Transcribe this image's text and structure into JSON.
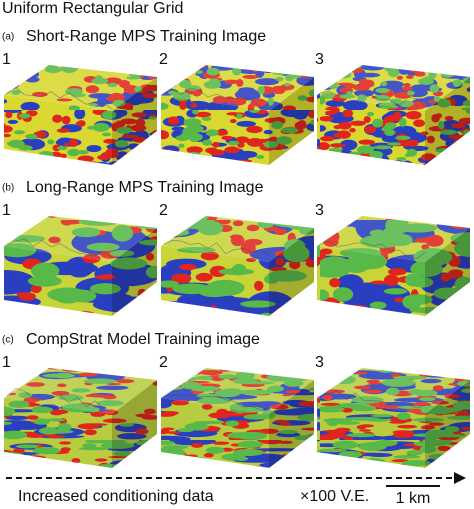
{
  "title": "Uniform Rectangular Grid",
  "panels": [
    {
      "label": "(a)",
      "title": "Short-Range MPS Training Image",
      "columns": [
        "1",
        "2",
        "3"
      ]
    },
    {
      "label": "(b)",
      "title": "Long-Range MPS Training Image",
      "columns": [
        "1",
        "2",
        "3"
      ]
    },
    {
      "label": "(c)",
      "title": "CompStrat Model Training image",
      "columns": [
        "1",
        "2",
        "3"
      ]
    }
  ],
  "footer": {
    "arrow_label": "Increased conditioning data",
    "exaggeration": "×100 V.E.",
    "scale": "1 km"
  }
}
